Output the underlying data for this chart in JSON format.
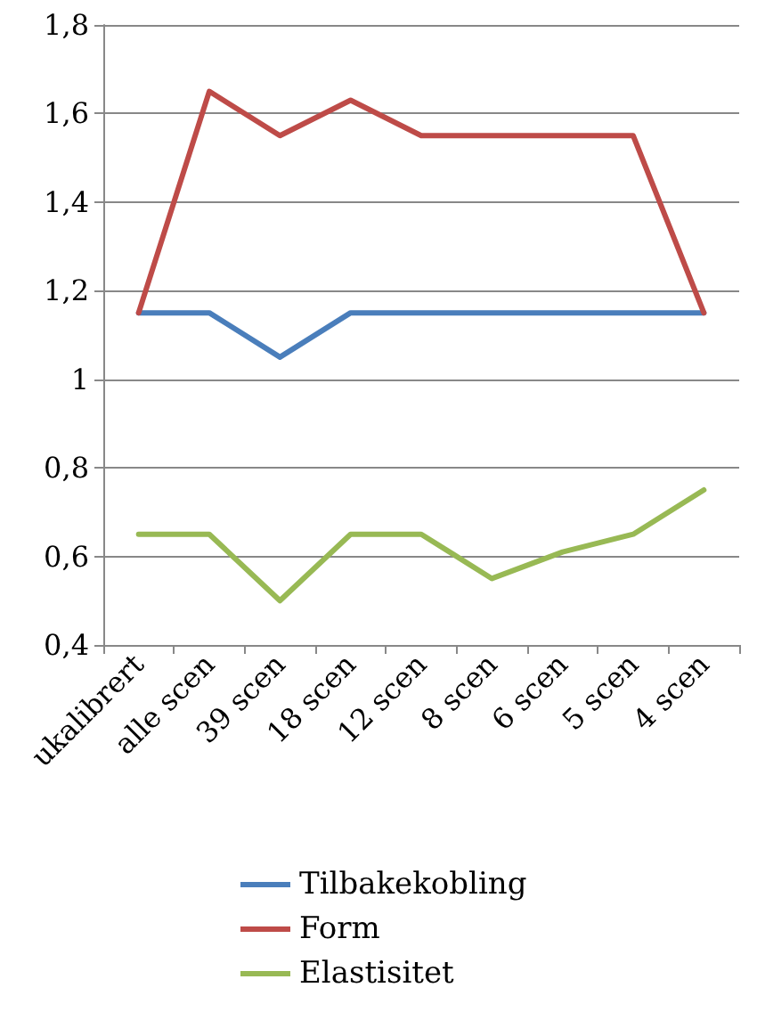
{
  "chart_data": {
    "type": "line",
    "categories": [
      "ukalibrert",
      "alle scen",
      "39 scen",
      "18 scen",
      "12 scen",
      "8 scen",
      "6 scen",
      "5 scen",
      "4 scen"
    ],
    "series": [
      {
        "name": "Tilbakekobling",
        "color": "#4a7ebb",
        "values": [
          1.15,
          1.15,
          1.05,
          1.15,
          1.15,
          1.15,
          1.15,
          1.15,
          1.15
        ]
      },
      {
        "name": "Form",
        "color": "#be4b48",
        "values": [
          1.15,
          1.65,
          1.55,
          1.63,
          1.55,
          1.55,
          1.55,
          1.55,
          1.15
        ]
      },
      {
        "name": "Elastisitet",
        "color": "#98b954",
        "values": [
          0.65,
          0.65,
          0.5,
          0.65,
          0.65,
          0.55,
          0.61,
          0.65,
          0.75
        ]
      }
    ],
    "ylim": [
      0.4,
      1.8
    ],
    "yticks": [
      {
        "value": 0.4,
        "label": "0,4"
      },
      {
        "value": 0.6,
        "label": "0,6"
      },
      {
        "value": 0.8,
        "label": "0,8"
      },
      1,
      {
        "value": 1.2,
        "label": "1,2"
      },
      {
        "value": 1.4,
        "label": "1,4"
      },
      {
        "value": 1.6,
        "label": "1,6"
      },
      {
        "value": 1.8,
        "label": "1,8"
      }
    ],
    "grid": "y",
    "legend": "bottom",
    "marker": "none",
    "line_style": "solid"
  }
}
